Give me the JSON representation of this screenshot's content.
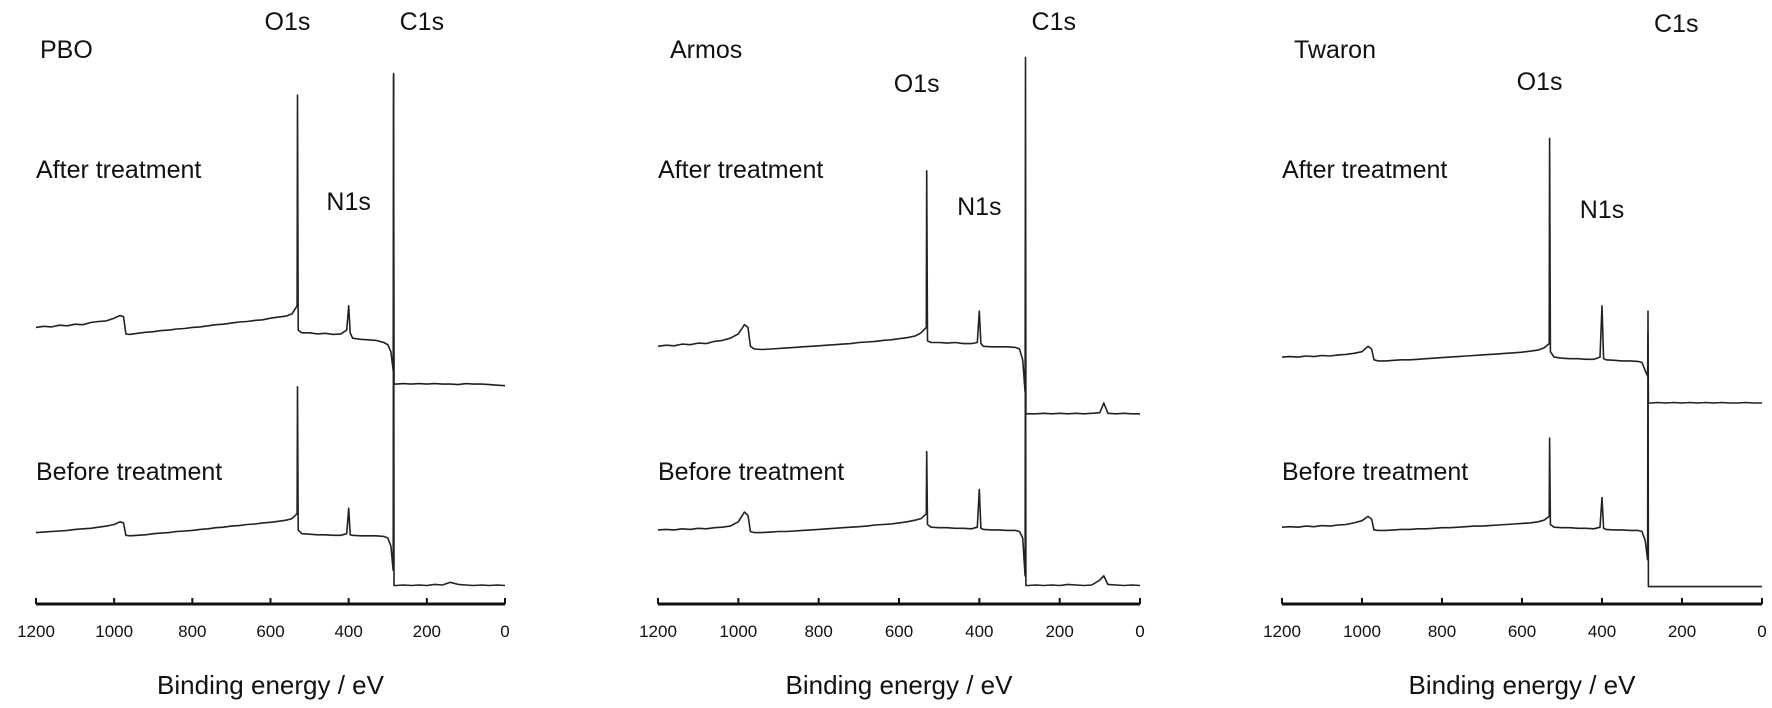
{
  "chart_data": [
    {
      "type": "line",
      "title": "PBO",
      "xlabel": "Binding energy / eV",
      "xlim": [
        1200,
        0
      ],
      "x_reversed": true,
      "xticks": [
        "1200",
        "1000",
        "800",
        "600",
        "400",
        "200",
        "0"
      ],
      "grid": false,
      "peak_labels": [
        {
          "text": "O1s",
          "x": 531
        },
        {
          "text": "C1s",
          "x": 285
        },
        {
          "text": "N1s",
          "x": 400
        }
      ],
      "series": [
        {
          "name": "After treatment",
          "x": [
            1200,
            1180,
            1160,
            1140,
            1120,
            1100,
            1080,
            1060,
            1040,
            1020,
            1000,
            985,
            976,
            970,
            960,
            940,
            920,
            900,
            880,
            860,
            840,
            820,
            800,
            780,
            760,
            740,
            720,
            700,
            680,
            660,
            640,
            620,
            600,
            580,
            560,
            545,
            532,
            531,
            529,
            520,
            500,
            480,
            460,
            440,
            420,
            405,
            400,
            396,
            390,
            370,
            350,
            330,
            310,
            300,
            292,
            286,
            285,
            284,
            278,
            260,
            240,
            220,
            200,
            180,
            160,
            140,
            120,
            100,
            80,
            60,
            40,
            20,
            0
          ],
          "y": [
            4.9,
            4.92,
            4.91,
            4.94,
            4.93,
            4.96,
            4.95,
            4.99,
            5.01,
            5.02,
            5.07,
            5.12,
            5.1,
            4.78,
            4.77,
            4.79,
            4.81,
            4.82,
            4.84,
            4.85,
            4.87,
            4.88,
            4.9,
            4.91,
            4.93,
            4.95,
            4.96,
            4.98,
            5.0,
            5.01,
            5.03,
            5.04,
            5.07,
            5.09,
            5.11,
            5.15,
            5.3,
            9.2,
            4.85,
            4.8,
            4.8,
            4.78,
            4.79,
            4.77,
            4.78,
            4.85,
            5.3,
            4.8,
            4.7,
            4.68,
            4.67,
            4.66,
            4.62,
            4.58,
            4.45,
            4.1,
            9.55,
            3.85,
            3.85,
            3.86,
            3.85,
            3.86,
            3.85,
            3.86,
            3.85,
            3.85,
            3.84,
            3.86,
            3.85,
            3.85,
            3.84,
            3.83,
            3.82
          ]
        },
        {
          "name": "Before treatment",
          "x": [
            1200,
            1180,
            1160,
            1140,
            1120,
            1100,
            1080,
            1060,
            1040,
            1020,
            1000,
            985,
            976,
            970,
            960,
            940,
            920,
            900,
            880,
            860,
            840,
            820,
            800,
            780,
            760,
            740,
            720,
            700,
            680,
            660,
            640,
            620,
            600,
            580,
            560,
            545,
            532,
            531,
            529,
            520,
            500,
            480,
            460,
            440,
            420,
            405,
            400,
            396,
            390,
            370,
            350,
            330,
            310,
            300,
            292,
            286,
            285,
            284,
            278,
            260,
            240,
            220,
            200,
            180,
            160,
            140,
            120,
            100,
            80,
            60,
            40,
            20,
            0
          ],
          "y": [
            1.1,
            1.11,
            1.12,
            1.13,
            1.14,
            1.16,
            1.17,
            1.18,
            1.2,
            1.22,
            1.25,
            1.3,
            1.28,
            1.05,
            1.04,
            1.05,
            1.06,
            1.08,
            1.09,
            1.1,
            1.12,
            1.13,
            1.14,
            1.16,
            1.17,
            1.19,
            1.2,
            1.22,
            1.23,
            1.25,
            1.26,
            1.28,
            1.29,
            1.31,
            1.33,
            1.36,
            1.45,
            3.8,
            1.15,
            1.08,
            1.07,
            1.06,
            1.06,
            1.05,
            1.05,
            1.08,
            1.55,
            1.06,
            1.05,
            1.04,
            1.04,
            1.04,
            1.03,
            1.0,
            0.85,
            0.4,
            9.6,
            0.12,
            0.12,
            0.13,
            0.12,
            0.13,
            0.12,
            0.14,
            0.13,
            0.18,
            0.14,
            0.13,
            0.12,
            0.13,
            0.12,
            0.13,
            0.12
          ]
        }
      ]
    },
    {
      "type": "line",
      "title": "Armos",
      "xlabel": "Binding energy / eV",
      "xlim": [
        1200,
        0
      ],
      "x_reversed": true,
      "xticks": [
        "1200",
        "1000",
        "800",
        "600",
        "400",
        "200",
        "0"
      ],
      "grid": false,
      "peak_labels": [
        {
          "text": "O1s",
          "x": 531
        },
        {
          "text": "C1s",
          "x": 285
        },
        {
          "text": "N1s",
          "x": 400
        }
      ],
      "series": [
        {
          "name": "After treatment",
          "x": [
            1200,
            1180,
            1160,
            1140,
            1120,
            1100,
            1080,
            1060,
            1040,
            1020,
            1000,
            985,
            976,
            970,
            960,
            940,
            920,
            900,
            880,
            860,
            840,
            820,
            800,
            780,
            760,
            740,
            720,
            700,
            680,
            660,
            640,
            620,
            600,
            580,
            560,
            545,
            532,
            531,
            529,
            520,
            500,
            480,
            460,
            440,
            420,
            405,
            400,
            396,
            390,
            370,
            350,
            330,
            310,
            300,
            292,
            286,
            285,
            284,
            278,
            260,
            240,
            220,
            200,
            180,
            160,
            140,
            120,
            100,
            90,
            80,
            60,
            40,
            20,
            0
          ],
          "y": [
            4.55,
            4.57,
            4.56,
            4.59,
            4.58,
            4.61,
            4.6,
            4.64,
            4.66,
            4.7,
            4.78,
            4.95,
            4.9,
            4.55,
            4.5,
            4.49,
            4.5,
            4.51,
            4.52,
            4.53,
            4.54,
            4.55,
            4.56,
            4.57,
            4.58,
            4.59,
            4.6,
            4.62,
            4.63,
            4.64,
            4.66,
            4.67,
            4.69,
            4.71,
            4.74,
            4.8,
            4.9,
            7.8,
            4.65,
            4.62,
            4.62,
            4.61,
            4.62,
            4.6,
            4.6,
            4.62,
            5.2,
            4.6,
            4.55,
            4.54,
            4.54,
            4.54,
            4.53,
            4.5,
            4.3,
            3.7,
            9.9,
            3.3,
            3.3,
            3.3,
            3.31,
            3.3,
            3.31,
            3.3,
            3.31,
            3.3,
            3.31,
            3.32,
            3.5,
            3.31,
            3.3,
            3.31,
            3.3,
            3.3
          ]
        },
        {
          "name": "Before treatment",
          "x": [
            1200,
            1180,
            1160,
            1140,
            1120,
            1100,
            1080,
            1060,
            1040,
            1020,
            1000,
            985,
            976,
            970,
            960,
            940,
            920,
            900,
            880,
            860,
            840,
            820,
            800,
            780,
            760,
            740,
            720,
            700,
            680,
            660,
            640,
            620,
            600,
            580,
            560,
            545,
            532,
            531,
            529,
            520,
            500,
            480,
            460,
            440,
            420,
            405,
            400,
            396,
            390,
            370,
            350,
            330,
            310,
            300,
            292,
            286,
            285,
            284,
            278,
            260,
            240,
            220,
            200,
            180,
            160,
            140,
            120,
            100,
            90,
            80,
            60,
            40,
            20,
            0
          ],
          "y": [
            1.15,
            1.16,
            1.15,
            1.17,
            1.16,
            1.18,
            1.17,
            1.19,
            1.2,
            1.22,
            1.3,
            1.48,
            1.42,
            1.12,
            1.1,
            1.1,
            1.11,
            1.12,
            1.12,
            1.13,
            1.14,
            1.15,
            1.16,
            1.17,
            1.18,
            1.19,
            1.2,
            1.21,
            1.22,
            1.24,
            1.25,
            1.26,
            1.28,
            1.3,
            1.33,
            1.36,
            1.45,
            2.6,
            1.25,
            1.2,
            1.19,
            1.19,
            1.18,
            1.18,
            1.17,
            1.2,
            1.9,
            1.18,
            1.16,
            1.15,
            1.15,
            1.14,
            1.14,
            1.12,
            1.0,
            0.3,
            6.2,
            0.12,
            0.12,
            0.13,
            0.12,
            0.13,
            0.12,
            0.14,
            0.13,
            0.12,
            0.13,
            0.22,
            0.3,
            0.14,
            0.13,
            0.12,
            0.13,
            0.12
          ]
        }
      ]
    },
    {
      "type": "line",
      "title": "Twaron",
      "xlabel": "Binding energy / eV",
      "xlim": [
        1200,
        0
      ],
      "x_reversed": true,
      "xticks": [
        "1200",
        "1000",
        "800",
        "600",
        "400",
        "200",
        "0"
      ],
      "grid": false,
      "peak_labels": [
        {
          "text": "O1s",
          "x": 531
        },
        {
          "text": "C1s",
          "x": 285
        },
        {
          "text": "N1s",
          "x": 400
        }
      ],
      "series": [
        {
          "name": "After treatment",
          "x": [
            1200,
            1180,
            1160,
            1140,
            1120,
            1100,
            1080,
            1060,
            1040,
            1020,
            1000,
            985,
            976,
            970,
            960,
            940,
            920,
            900,
            880,
            860,
            840,
            820,
            800,
            780,
            760,
            740,
            720,
            700,
            680,
            660,
            640,
            620,
            600,
            580,
            560,
            545,
            532,
            531,
            529,
            520,
            500,
            480,
            460,
            440,
            420,
            405,
            400,
            396,
            390,
            370,
            350,
            330,
            310,
            300,
            292,
            286,
            285,
            284,
            278,
            260,
            240,
            220,
            200,
            180,
            160,
            140,
            120,
            100,
            80,
            60,
            40,
            20,
            0
          ],
          "y": [
            4.35,
            4.36,
            4.35,
            4.37,
            4.36,
            4.38,
            4.37,
            4.39,
            4.4,
            4.42,
            4.45,
            4.55,
            4.5,
            4.3,
            4.28,
            4.28,
            4.29,
            4.3,
            4.3,
            4.31,
            4.32,
            4.33,
            4.34,
            4.35,
            4.36,
            4.37,
            4.38,
            4.39,
            4.4,
            4.41,
            4.42,
            4.43,
            4.44,
            4.46,
            4.48,
            4.52,
            4.6,
            8.4,
            4.45,
            4.35,
            4.33,
            4.32,
            4.32,
            4.31,
            4.31,
            4.35,
            5.3,
            4.32,
            4.3,
            4.29,
            4.28,
            4.28,
            4.27,
            4.25,
            4.1,
            4.0,
            4.8,
            3.5,
            3.5,
            3.51,
            3.5,
            3.51,
            3.5,
            3.51,
            3.5,
            3.51,
            3.5,
            3.51,
            3.5,
            3.5,
            3.51,
            3.5,
            3.5
          ]
        },
        {
          "name": "Before treatment",
          "x": [
            1200,
            1180,
            1160,
            1140,
            1120,
            1100,
            1080,
            1060,
            1040,
            1020,
            1000,
            985,
            976,
            970,
            960,
            940,
            920,
            900,
            880,
            860,
            840,
            820,
            800,
            780,
            760,
            740,
            720,
            700,
            680,
            660,
            640,
            620,
            600,
            580,
            560,
            545,
            532,
            531,
            529,
            520,
            500,
            480,
            460,
            440,
            420,
            405,
            400,
            396,
            390,
            370,
            350,
            330,
            310,
            300,
            292,
            286,
            285,
            284,
            278,
            260,
            240,
            220,
            200,
            180,
            160,
            140,
            120,
            100,
            80,
            60,
            40,
            20,
            0
          ],
          "y": [
            1.2,
            1.21,
            1.2,
            1.22,
            1.21,
            1.23,
            1.22,
            1.24,
            1.25,
            1.28,
            1.32,
            1.4,
            1.35,
            1.15,
            1.14,
            1.14,
            1.15,
            1.16,
            1.16,
            1.17,
            1.17,
            1.18,
            1.19,
            1.19,
            1.2,
            1.21,
            1.22,
            1.22,
            1.23,
            1.24,
            1.25,
            1.26,
            1.27,
            1.28,
            1.3,
            1.33,
            1.4,
            2.85,
            1.25,
            1.2,
            1.19,
            1.19,
            1.18,
            1.18,
            1.17,
            1.2,
            1.75,
            1.18,
            1.16,
            1.15,
            1.15,
            1.14,
            1.14,
            1.12,
            0.95,
            0.6,
            5.2,
            0.1,
            0.1,
            0.1,
            0.1,
            0.1,
            0.1,
            0.1,
            0.1,
            0.1,
            0.1,
            0.1,
            0.1,
            0.1,
            0.1,
            0.1,
            0.1
          ]
        }
      ]
    }
  ]
}
